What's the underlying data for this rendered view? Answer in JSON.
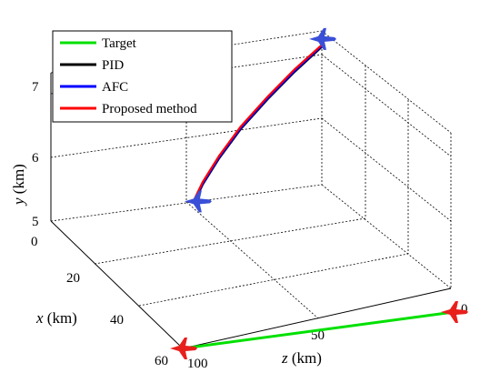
{
  "chart_data": {
    "type": "line3d",
    "axes": {
      "x": {
        "label_var": "x",
        "label_unit": " (km)",
        "ticks": [
          0,
          20,
          40,
          60
        ],
        "range": [
          0,
          60
        ]
      },
      "y": {
        "label_var": "y",
        "label_unit": " (km)",
        "ticks": [
          5,
          6,
          7
        ],
        "range": [
          5,
          7.8
        ]
      },
      "z": {
        "label_var": "z",
        "label_unit": " (km)",
        "ticks": [
          100,
          50,
          0
        ],
        "range": [
          0,
          100
        ]
      }
    },
    "grid": true,
    "legend": {
      "placement": "top-left",
      "entries": [
        "Target",
        "PID",
        "AFC",
        "Proposed method"
      ]
    },
    "series": [
      {
        "name": "Target",
        "color": "#00e000",
        "points": [
          [
            60,
            5,
            0
          ],
          [
            60,
            5,
            100
          ]
        ]
      },
      {
        "name": "PID",
        "color": "#000000",
        "points": [
          [
            0,
            7.6,
            0
          ],
          [
            0,
            7.2,
            10
          ],
          [
            0,
            6.75,
            20
          ],
          [
            0,
            6.25,
            30
          ],
          [
            0,
            5.75,
            38
          ],
          [
            0,
            5.3,
            44
          ],
          [
            0,
            5.0,
            47
          ]
        ]
      },
      {
        "name": "AFC",
        "color": "#0000ff",
        "points": [
          [
            0,
            7.62,
            0
          ],
          [
            0,
            7.22,
            10
          ],
          [
            0,
            6.77,
            20
          ],
          [
            0,
            6.27,
            30
          ],
          [
            0,
            5.77,
            38
          ],
          [
            0,
            5.32,
            44
          ],
          [
            0,
            5.02,
            47
          ]
        ]
      },
      {
        "name": "Proposed method",
        "color": "#ff0000",
        "points": [
          [
            0,
            7.64,
            0
          ],
          [
            0,
            7.25,
            10
          ],
          [
            0,
            6.8,
            20
          ],
          [
            0,
            6.3,
            30
          ],
          [
            0,
            5.8,
            38
          ],
          [
            0,
            5.35,
            44
          ],
          [
            0,
            5.05,
            47
          ]
        ]
      }
    ],
    "markers": [
      {
        "name": "uav-blue-end",
        "color": "#3a4fd8",
        "at": [
          0,
          7.75,
          0
        ]
      },
      {
        "name": "uav-blue-start",
        "color": "#3a4fd8",
        "at": [
          0,
          5.0,
          46
        ]
      },
      {
        "name": "target-jet-end",
        "color": "#e8201c",
        "at": [
          60,
          5,
          0
        ]
      },
      {
        "name": "target-jet-start",
        "color": "#e8201c",
        "at": [
          60,
          5,
          100
        ]
      }
    ]
  }
}
